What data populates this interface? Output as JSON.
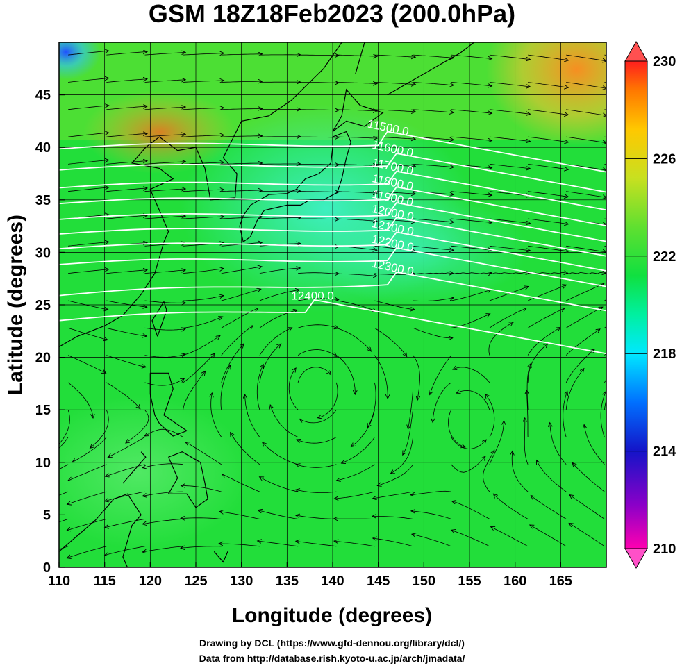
{
  "title": "GSM 18Z18Feb2023 (200.0hPa)",
  "xaxis": {
    "label": "Longitude (degrees)",
    "range": [
      110,
      170
    ],
    "ticks": [
      "110",
      "115",
      "120",
      "125",
      "130",
      "135",
      "140",
      "145",
      "150",
      "155",
      "160",
      "165"
    ]
  },
  "yaxis": {
    "label": "Latitude  (degrees)",
    "range": [
      0,
      50
    ],
    "ticks": [
      "0",
      "5",
      "10",
      "15",
      "20",
      "25",
      "30",
      "35",
      "40",
      "45"
    ]
  },
  "colorbar": {
    "range": [
      210,
      230
    ],
    "labels": [
      "230",
      "226",
      "222",
      "218",
      "214",
      "210"
    ],
    "colors": [
      "#ff00b0",
      "#8a00c8",
      "#1414c8",
      "#0070ff",
      "#00e8ff",
      "#00f0a0",
      "#10e040",
      "#60e030",
      "#c8e020",
      "#ffc800",
      "#ff7800",
      "#ff1e1e"
    ]
  },
  "contours": [
    {
      "label": "11500.0",
      "lon": 146,
      "lat": 41.5
    },
    {
      "label": "11600.0",
      "lon": 146.5,
      "lat": 39.5
    },
    {
      "label": "11700.0",
      "lon": 146.5,
      "lat": 37.8
    },
    {
      "label": "11800.0",
      "lon": 146.5,
      "lat": 36.3
    },
    {
      "label": "11900.0",
      "lon": 146.5,
      "lat": 34.8
    },
    {
      "label": "12000.0",
      "lon": 146.5,
      "lat": 33.4
    },
    {
      "label": "12100.0",
      "lon": 146.5,
      "lat": 32.0
    },
    {
      "label": "12200.0",
      "lon": 146.5,
      "lat": 30.5
    },
    {
      "label": "12300.0",
      "lon": 146.5,
      "lat": 28.2
    },
    {
      "label": "12400.0",
      "lon": 137.8,
      "lat": 25.5
    }
  ],
  "credits": [
    "Drawing by DCL (https://www.gfd-dennou.org/library/dcl/)",
    "Data from http://database.rish.kyoto-u.ac.jp/arch/jmadata/"
  ]
}
